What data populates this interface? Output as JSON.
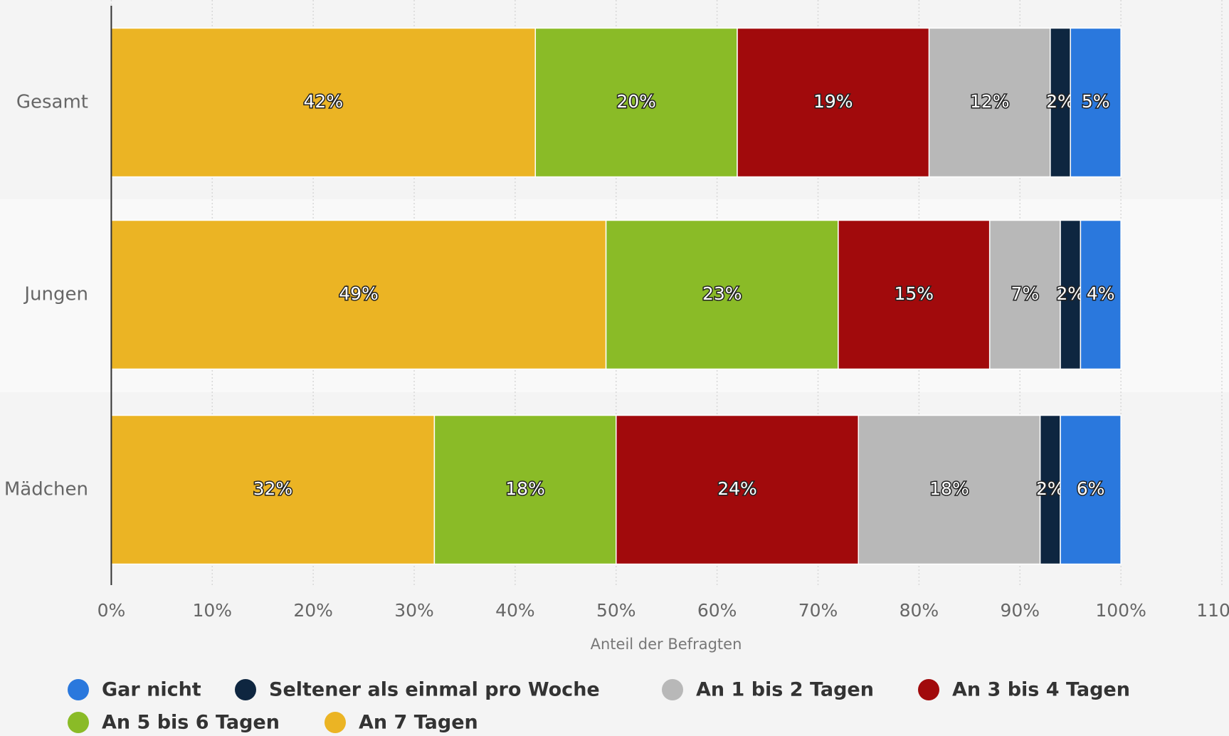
{
  "chart_data": {
    "type": "stacked_barh",
    "categories": [
      "Gesamt",
      "Jungen",
      "Mädchen"
    ],
    "series": [
      {
        "name": "Gar nicht",
        "color": "#2a78dd",
        "values": [
          5,
          4,
          6
        ],
        "value_labels": [
          "5%",
          "4%",
          "6%"
        ]
      },
      {
        "name": "Seltener als einmal pro Woche",
        "color": "#0e2640",
        "values": [
          2,
          2,
          2
        ],
        "value_labels": [
          "2%",
          "2%",
          "2%"
        ]
      },
      {
        "name": "An 1 bis 2 Tagen",
        "color": "#b8b8b8",
        "values": [
          12,
          7,
          18
        ],
        "value_labels": [
          "12%",
          "7%",
          "18%"
        ]
      },
      {
        "name": "An 3 bis 4 Tagen",
        "color": "#a10a0c",
        "values": [
          19,
          15,
          24
        ],
        "value_labels": [
          "19%",
          "15%",
          "24%"
        ]
      },
      {
        "name": "An 5 bis 6 Tagen",
        "color": "#8abb27",
        "values": [
          20,
          23,
          18
        ],
        "value_labels": [
          "20%",
          "23%",
          "18%"
        ]
      },
      {
        "name": "An 7 Tagen",
        "color": "#ebb424",
        "values": [
          42,
          49,
          32
        ],
        "value_labels": [
          "42%",
          "49%",
          "32%"
        ]
      }
    ],
    "xlabel": "Anteil der Befragten",
    "xlim": [
      0,
      110
    ],
    "xticks": [
      {
        "value": 0,
        "label": "0%"
      },
      {
        "value": 10,
        "label": "10%"
      },
      {
        "value": 20,
        "label": "20%"
      },
      {
        "value": 30,
        "label": "30%"
      },
      {
        "value": 40,
        "label": "40%"
      },
      {
        "value": 50,
        "label": "50%"
      },
      {
        "value": 60,
        "label": "60%"
      },
      {
        "value": 70,
        "label": "70%"
      },
      {
        "value": 80,
        "label": "80%"
      },
      {
        "value": 90,
        "label": "90%"
      },
      {
        "value": 100,
        "label": "100%"
      },
      {
        "value": 110,
        "label": "110%"
      }
    ],
    "grid": true,
    "legend": "bottom"
  }
}
